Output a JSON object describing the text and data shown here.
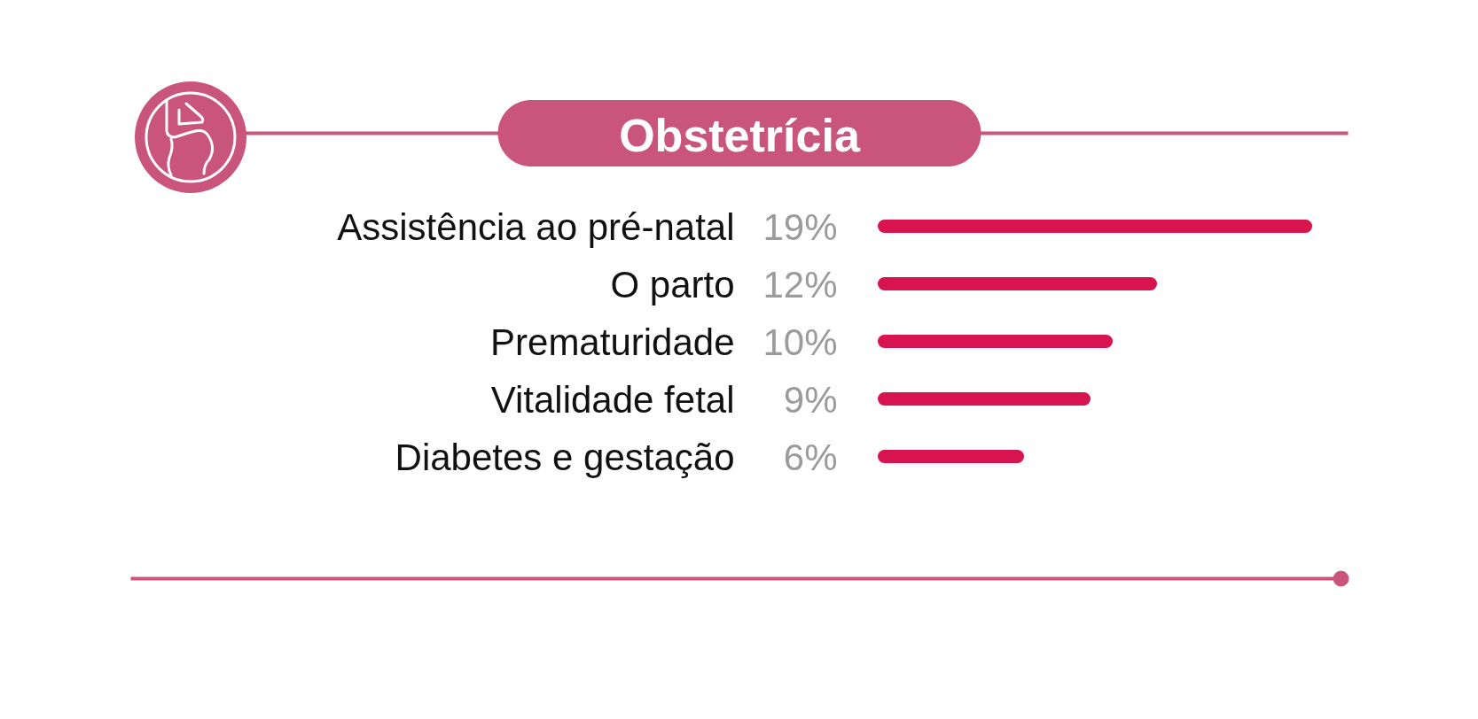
{
  "chart_data": {
    "type": "bar",
    "orientation": "horizontal",
    "title": "Obstetrícia",
    "categories": [
      "Assistência ao pré-natal",
      "O parto",
      "Prematuridade",
      "Vitalidade fetal",
      "Diabetes e gestação"
    ],
    "values": [
      19,
      12,
      10,
      9,
      6
    ],
    "value_labels": [
      "19%",
      "12%",
      "10%",
      "9%",
      "6%"
    ],
    "color": "#d81450",
    "tick_labels": "y"
  }
}
